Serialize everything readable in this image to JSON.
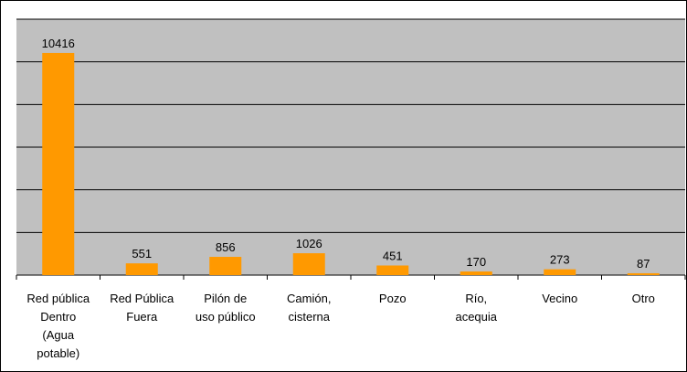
{
  "chart_data": {
    "type": "bar",
    "categories": [
      "Red pública Dentro (Agua potable)",
      "Red Pública Fuera",
      "Pilón de uso público",
      "Camión, cisterna",
      "Pozo",
      "Río, acequia",
      "Vecino",
      "Otro"
    ],
    "category_lines": [
      [
        "Red pública",
        "Dentro",
        "(Agua",
        "potable)"
      ],
      [
        "Red Pública",
        "Fuera"
      ],
      [
        "Pilón de",
        "uso público"
      ],
      [
        "Camión,",
        "cisterna"
      ],
      [
        "Pozo"
      ],
      [
        "Río,",
        "acequia"
      ],
      [
        "Vecino"
      ],
      [
        "Otro"
      ]
    ],
    "values": [
      10416,
      551,
      856,
      1026,
      451,
      170,
      273,
      87
    ],
    "data_labels": [
      "10416",
      "551",
      "856",
      "1026",
      "451",
      "170",
      "273",
      "87"
    ],
    "ylim": [
      0,
      12000
    ],
    "y_gridlines": [
      0,
      2000,
      4000,
      6000,
      8000,
      10000,
      12000
    ],
    "grid": true,
    "legend": "none",
    "title": "",
    "xlabel": "",
    "ylabel": "",
    "colors": {
      "bar": "#FF9900",
      "plot_background": "#C0C0C0",
      "gridline": "#000000",
      "frame": "#000000"
    }
  }
}
